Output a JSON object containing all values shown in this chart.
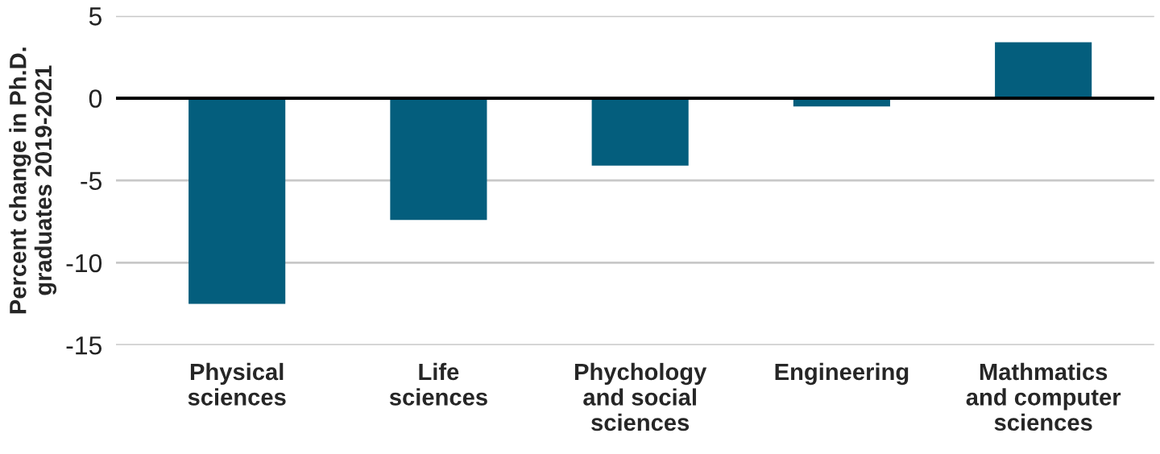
{
  "chart_data": {
    "type": "bar",
    "ylabel": "Percent change in Ph.D.\ngraduates 2019-2021",
    "categories": [
      "Physical\nsciences",
      "Life\nsciences",
      "Phychology\nand social\nsciences",
      "Engineering",
      "Mathmatics\nand computer\nsciences"
    ],
    "values": [
      -12.5,
      -7.4,
      -4.1,
      -0.5,
      3.4
    ],
    "color": "#045e7d",
    "ylim": [
      -15,
      5
    ],
    "yticks": [
      -15,
      -10,
      -5,
      0,
      5
    ],
    "grid": "y",
    "ref_lines": [
      {
        "axis": "y",
        "value": 0,
        "color": "#000000"
      }
    ]
  }
}
